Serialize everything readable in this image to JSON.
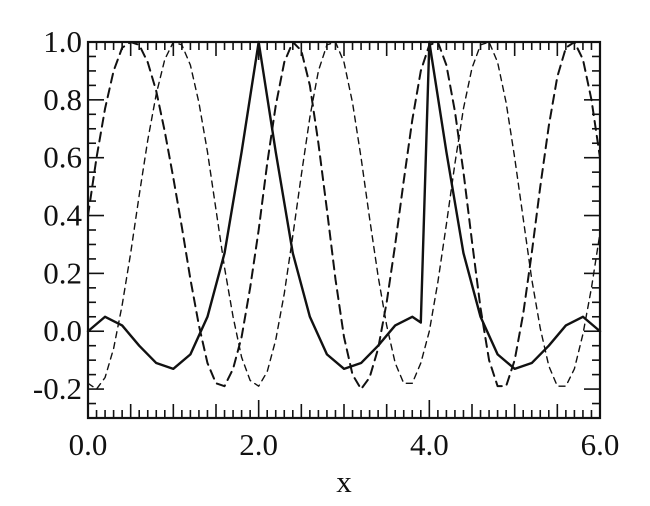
{
  "chart_data": {
    "type": "line",
    "xlabel": "x",
    "ylabel": "",
    "xlim": [
      0.0,
      6.0
    ],
    "ylim": [
      -0.3,
      1.0
    ],
    "grid": false,
    "x_ticks": [
      "0.0",
      "2.0",
      "4.0",
      "6.0"
    ],
    "y_ticks": [
      "1.0",
      "0.8",
      "0.6",
      "0.4",
      "0.2",
      "0.0",
      "-0.2"
    ],
    "series": [
      {
        "style": "solid",
        "color": "#111111",
        "x": [
          0.0,
          0.2,
          0.4,
          0.6,
          0.8,
          1.0,
          1.2,
          1.4,
          1.6,
          1.8,
          1.9,
          2.0,
          2.1,
          2.2,
          2.4,
          2.6,
          2.8,
          3.0,
          3.2,
          3.4,
          3.6,
          3.8,
          3.9,
          4.0,
          4.1,
          4.2,
          4.4,
          4.6,
          4.8,
          5.0,
          5.2,
          5.4,
          5.6,
          5.8,
          6.0
        ],
        "y": [
          0.0,
          0.05,
          0.02,
          -0.05,
          -0.11,
          -0.13,
          -0.08,
          0.05,
          0.27,
          0.62,
          0.81,
          1.0,
          0.81,
          0.62,
          0.27,
          0.05,
          -0.08,
          -0.13,
          -0.11,
          -0.05,
          0.02,
          0.05,
          0.03,
          1.0,
          0.81,
          0.62,
          0.27,
          0.05,
          -0.08,
          -0.13,
          -0.11,
          -0.05,
          0.02,
          0.05,
          0.0
        ]
      },
      {
        "style": "dashed-heavy",
        "color": "#111111",
        "x": [
          0.0,
          0.1,
          0.2,
          0.3,
          0.4,
          0.5,
          0.6,
          0.7,
          0.8,
          0.9,
          1.0,
          1.1,
          1.2,
          1.3,
          1.4,
          1.5,
          1.6,
          1.7,
          1.8,
          1.9,
          2.0,
          2.1,
          2.2,
          2.3,
          2.4,
          2.5,
          2.6,
          2.7,
          2.8,
          2.9,
          3.0,
          3.1,
          3.2,
          3.3,
          3.4,
          3.5,
          3.6,
          3.7,
          3.8,
          3.9,
          4.0,
          4.1,
          4.2,
          4.3,
          4.4,
          4.5,
          4.6,
          4.7,
          4.8,
          4.9,
          5.0,
          5.1,
          5.2,
          5.3,
          5.4,
          5.5,
          5.6,
          5.7,
          5.8,
          5.9,
          6.0
        ],
        "y": [
          0.4,
          0.6,
          0.77,
          0.9,
          0.98,
          1.0,
          0.99,
          0.93,
          0.83,
          0.69,
          0.53,
          0.36,
          0.18,
          0.02,
          -0.11,
          -0.18,
          -0.19,
          -0.13,
          -0.02,
          0.15,
          0.35,
          0.58,
          0.78,
          0.93,
          1.0,
          0.97,
          0.85,
          0.65,
          0.42,
          0.18,
          -0.02,
          -0.15,
          -0.2,
          -0.16,
          -0.06,
          0.1,
          0.3,
          0.52,
          0.73,
          0.9,
          0.99,
          1.0,
          0.92,
          0.76,
          0.55,
          0.31,
          0.08,
          -0.1,
          -0.19,
          -0.19,
          -0.1,
          0.06,
          0.27,
          0.5,
          0.71,
          0.88,
          0.98,
          1.0,
          0.94,
          0.8,
          0.6
        ]
      },
      {
        "style": "dashed-light",
        "color": "#111111",
        "x": [
          0.0,
          0.1,
          0.2,
          0.3,
          0.4,
          0.5,
          0.6,
          0.7,
          0.8,
          0.9,
          1.0,
          1.1,
          1.2,
          1.3,
          1.4,
          1.5,
          1.6,
          1.7,
          1.8,
          1.9,
          2.0,
          2.1,
          2.2,
          2.3,
          2.4,
          2.5,
          2.6,
          2.7,
          2.8,
          2.9,
          3.0,
          3.1,
          3.2,
          3.3,
          3.4,
          3.5,
          3.6,
          3.7,
          3.8,
          3.9,
          4.0,
          4.1,
          4.2,
          4.3,
          4.4,
          4.5,
          4.6,
          4.7,
          4.8,
          4.9,
          5.0,
          5.1,
          5.2,
          5.3,
          5.4,
          5.5,
          5.6,
          5.7,
          5.8,
          5.9,
          6.0
        ],
        "y": [
          -0.18,
          -0.2,
          -0.16,
          -0.06,
          0.09,
          0.27,
          0.47,
          0.66,
          0.82,
          0.94,
          1.0,
          0.99,
          0.92,
          0.79,
          0.62,
          0.42,
          0.22,
          0.05,
          -0.09,
          -0.17,
          -0.19,
          -0.14,
          -0.03,
          0.13,
          0.33,
          0.54,
          0.74,
          0.9,
          0.99,
          1.0,
          0.93,
          0.79,
          0.6,
          0.39,
          0.19,
          0.02,
          -0.11,
          -0.18,
          -0.18,
          -0.11,
          0.0,
          0.17,
          0.37,
          0.58,
          0.77,
          0.91,
          0.99,
          1.0,
          0.93,
          0.79,
          0.6,
          0.39,
          0.18,
          0.01,
          -0.12,
          -0.19,
          -0.19,
          -0.13,
          -0.01,
          0.15,
          0.34
        ]
      }
    ]
  }
}
